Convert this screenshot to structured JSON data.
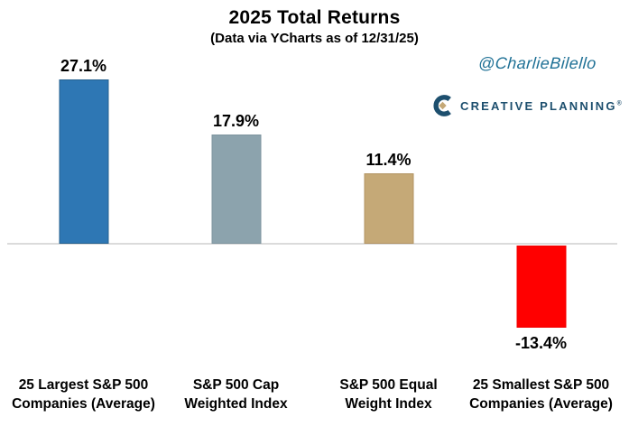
{
  "header": {
    "title": "2025 Total Returns",
    "subtitle": "(Data via YCharts as of 12/31/25)"
  },
  "watermark": {
    "handle": "@CharlieBilello",
    "color": "#1E7095"
  },
  "logo": {
    "name": "CREATIVE PLANNING",
    "trademark": "®",
    "text_color": "#1D4F6E",
    "icon_color": "#1D4F6E",
    "diamond_color": "#C4A877"
  },
  "chart_data": {
    "type": "bar",
    "title": "2025 Total Returns",
    "subtitle": "(Data via YCharts as of 12/31/25)",
    "categories": [
      "25 Largest S&P 500 Companies (Average)",
      "S&P 500 Cap Weighted Index",
      "S&P 500 Equal Weight Index",
      "25 Smallest S&P 500 Companies (Average)"
    ],
    "category_lines": [
      [
        "25 Largest S&P 500",
        "Companies (Average)"
      ],
      [
        "S&P 500 Cap",
        "Weighted Index"
      ],
      [
        "S&P 500 Equal",
        "Weight Index"
      ],
      [
        "25 Smallest S&P 500",
        "Companies (Average)"
      ]
    ],
    "values": [
      27.1,
      17.9,
      11.4,
      -13.4
    ],
    "value_labels": [
      "27.1%",
      "17.9%",
      "11.4%",
      "-13.4%"
    ],
    "unit": "%",
    "bar_colors": [
      "#2E77B4",
      "#8CA3AD",
      "#C5A977",
      "#FF0000"
    ],
    "bar_border_colors": [
      "#25618F",
      "#7E959F",
      "#B29463",
      "#F00000"
    ],
    "axis_color": "#DBDBDB",
    "ylim": [
      -20,
      30
    ],
    "grid": false,
    "legend": false
  }
}
